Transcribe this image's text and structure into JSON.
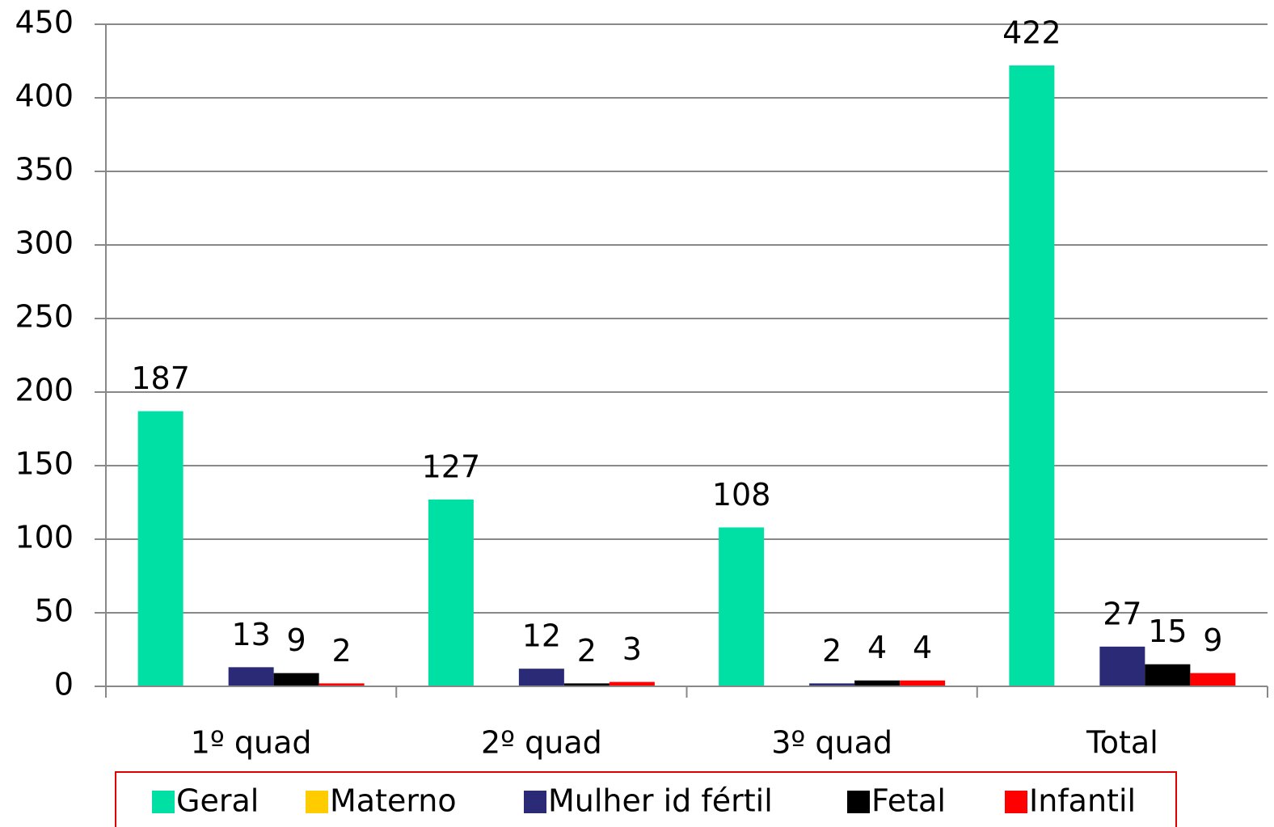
{
  "chart_data": {
    "type": "bar",
    "categories": [
      "1º quad",
      "2º quad",
      "3º quad",
      "Total"
    ],
    "series": [
      {
        "name": "Geral",
        "color": "#00e0a4",
        "values": [
          187,
          127,
          108,
          422
        ]
      },
      {
        "name": "Materno",
        "color": "#ffcc00",
        "values": [
          null,
          null,
          null,
          null
        ]
      },
      {
        "name": "Mulher id fértil",
        "color": "#2b2a77",
        "values": [
          13,
          12,
          2,
          27
        ]
      },
      {
        "name": "Fetal",
        "color": "#000000",
        "values": [
          9,
          2,
          4,
          15
        ]
      },
      {
        "name": "Infantil",
        "color": "#ff0000",
        "values": [
          2,
          3,
          4,
          9
        ]
      }
    ],
    "ylim": [
      0,
      450
    ],
    "yticks": [
      0,
      50,
      100,
      150,
      200,
      250,
      300,
      350,
      400,
      450
    ],
    "grid": true,
    "legend": "bottom"
  }
}
